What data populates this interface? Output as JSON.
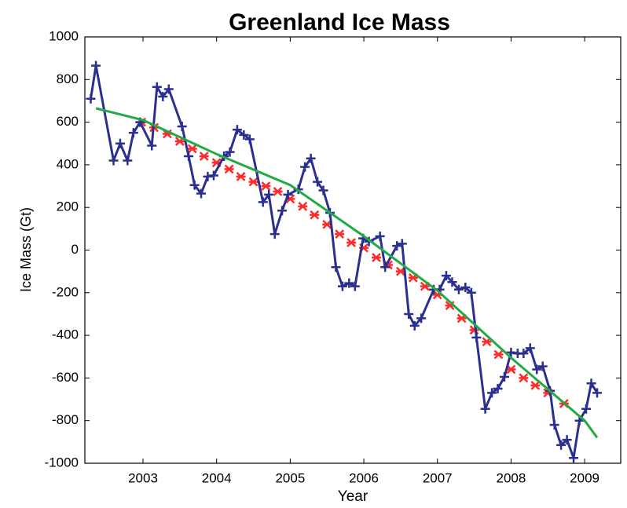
{
  "chart_data": {
    "type": "line",
    "title": "Greenland Ice Mass",
    "x_label": "Year",
    "y_label": "Ice Mass (Gt)",
    "xlim": [
      2002.21,
      2009.49
    ],
    "xticks": [
      2003,
      2004,
      2005,
      2006,
      2007,
      2008,
      2009
    ],
    "ylim": [
      -1000,
      1000
    ],
    "yticks": [
      -1000,
      -800,
      -600,
      -400,
      -200,
      0,
      200,
      400,
      600,
      800,
      1000
    ],
    "grid": false,
    "series": [
      {
        "color": "#ff2a2a",
        "marker": "x",
        "x": [
          2002.98,
          2003.15,
          2003.33,
          2003.5,
          2003.67,
          2003.83,
          2004.0,
          2004.17,
          2004.33,
          2004.5,
          2004.67,
          2004.83,
          2005.0,
          2005.17,
          2005.33,
          2005.5,
          2005.67,
          2005.83,
          2006.0,
          2006.17,
          2006.33,
          2006.5,
          2006.67,
          2006.83,
          2007.0,
          2007.17,
          2007.33,
          2007.5,
          2007.67,
          2007.83,
          2008.0,
          2008.17,
          2008.33,
          2008.5,
          2008.72
        ],
        "values": [
          600,
          575,
          545,
          510,
          475,
          440,
          410,
          380,
          345,
          320,
          300,
          275,
          240,
          205,
          165,
          120,
          75,
          35,
          10,
          -35,
          -70,
          -100,
          -130,
          -170,
          -210,
          -260,
          -320,
          -375,
          -430,
          -490,
          -560,
          -600,
          -635,
          -670,
          -720
        ]
      },
      {
        "color": "#2b2f8f",
        "marker": "+",
        "x": [
          2002.29,
          2002.36,
          2002.6,
          2002.69,
          2002.79,
          2002.87,
          2002.96,
          2003.12,
          2003.19,
          2003.27,
          2003.35,
          2003.53,
          2003.62,
          2003.7,
          2003.79,
          2003.88,
          2003.96,
          2004.1,
          2004.18,
          2004.28,
          2004.37,
          2004.45,
          2004.63,
          2004.71,
          2004.79,
          2004.89,
          2004.97,
          2005.11,
          2005.2,
          2005.28,
          2005.37,
          2005.45,
          2005.54,
          2005.62,
          2005.71,
          2005.8,
          2005.88,
          2005.99,
          2006.07,
          2006.22,
          2006.29,
          2006.45,
          2006.52,
          2006.61,
          2006.69,
          2006.78,
          2006.95,
          2007.03,
          2007.12,
          2007.2,
          2007.29,
          2007.38,
          2007.46,
          2007.53,
          2007.65,
          2007.74,
          2007.82,
          2007.91,
          2008.0,
          2008.09,
          2008.17,
          2008.26,
          2008.35,
          2008.43,
          2008.53,
          2008.59,
          2008.68,
          2008.76,
          2008.85,
          2008.93,
          2009.02,
          2009.09,
          2009.17
        ],
        "values": [
          710,
          865,
          420,
          500,
          420,
          550,
          600,
          490,
          765,
          720,
          755,
          580,
          440,
          305,
          265,
          345,
          350,
          440,
          460,
          565,
          540,
          520,
          225,
          260,
          75,
          185,
          260,
          285,
          390,
          430,
          320,
          280,
          175,
          -80,
          -170,
          -155,
          -170,
          55,
          40,
          65,
          -80,
          20,
          30,
          -300,
          -355,
          -320,
          -185,
          -185,
          -120,
          -150,
          -185,
          -175,
          -200,
          -410,
          -745,
          -670,
          -650,
          -595,
          -480,
          -485,
          -485,
          -460,
          -560,
          -545,
          -660,
          -820,
          -915,
          -890,
          -975,
          -800,
          -745,
          -625,
          -670
        ]
      },
      {
        "color": "#22aa44",
        "marker": "none",
        "x": [
          2002.36,
          2003.0,
          2004.0,
          2005.0,
          2006.0,
          2007.0,
          2008.0,
          2009.0,
          2009.17
        ],
        "values": [
          665,
          610,
          450,
          305,
          65,
          -190,
          -505,
          -800,
          -880
        ]
      }
    ]
  }
}
